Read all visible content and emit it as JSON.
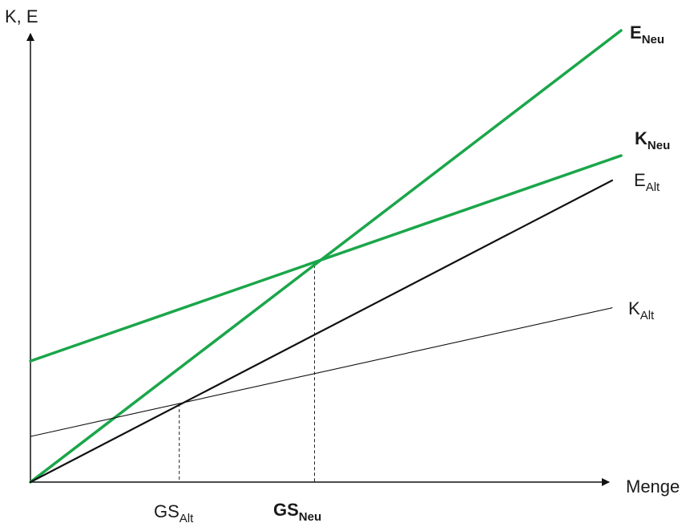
{
  "chart_data": {
    "type": "line",
    "axes": {
      "y_label": "K, E",
      "x_label": "Menge",
      "ticks_shown": false,
      "xlim": [
        0,
        100
      ],
      "ylim": [
        0,
        100
      ],
      "origin": [
        0,
        0
      ]
    },
    "colors": {
      "neu": "#1aa64a",
      "alt": "#111111",
      "axis": "#111111",
      "guide": "#222222"
    },
    "series": [
      {
        "id": "e_neu",
        "label_main": "E",
        "label_sub": "Neu",
        "bold": true,
        "color": "neu",
        "weight": "thick",
        "points": [
          [
            0,
            0
          ],
          [
            100,
            100
          ]
        ]
      },
      {
        "id": "k_neu",
        "label_main": "K",
        "label_sub": "Neu",
        "bold": true,
        "color": "neu",
        "weight": "thick",
        "points": [
          [
            0,
            26.8
          ],
          [
            100,
            72.3
          ]
        ]
      },
      {
        "id": "e_alt",
        "label_main": "E",
        "label_sub": "Alt",
        "bold": false,
        "color": "alt",
        "weight": "medium",
        "points": [
          [
            0,
            0
          ],
          [
            98.5,
            66.8
          ]
        ]
      },
      {
        "id": "k_alt",
        "label_main": "K",
        "label_sub": "Alt",
        "bold": false,
        "color": "alt",
        "weight": "thin",
        "points": [
          [
            0,
            10.1
          ],
          [
            98.5,
            38.6
          ]
        ]
      }
    ],
    "intersections": [
      {
        "id": "gs_alt",
        "label_main": "GS",
        "label_sub": "Alt",
        "bold": false,
        "x": 25.2,
        "y": 17.4
      },
      {
        "id": "gs_neu",
        "label_main": "GS",
        "label_sub": "Neu",
        "bold": true,
        "x": 48.1,
        "y": 48.1
      }
    ]
  }
}
